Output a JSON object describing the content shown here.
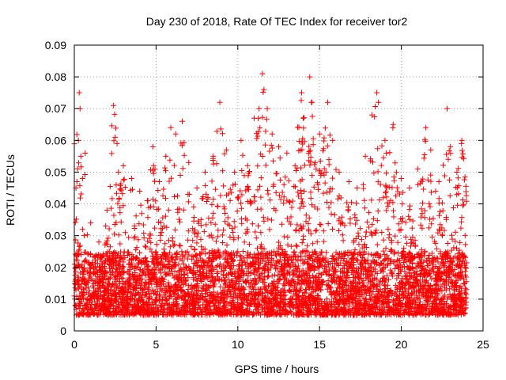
{
  "chart_data": {
    "type": "scatter",
    "title": "Day 230 of 2018, Rate Of TEC Index for receiver tor2",
    "xlabel": "GPS time / hours",
    "ylabel": "ROTI / TECUs",
    "xlim": [
      0,
      25
    ],
    "ylim": [
      0,
      0.09
    ],
    "xticks": [
      0,
      5,
      10,
      15,
      20,
      25
    ],
    "xtick_labels": [
      "0",
      "5",
      "10",
      "15",
      "20",
      "25"
    ],
    "yticks": [
      0,
      0.01,
      0.02,
      0.03,
      0.04,
      0.05,
      0.06,
      0.07,
      0.08,
      0.09
    ],
    "ytick_labels": [
      "0",
      "0.01",
      "0.02",
      "0.03",
      "0.04",
      "0.05",
      "0.06",
      "0.07",
      "0.08",
      "0.09"
    ],
    "grid": true,
    "marker": "+",
    "color": "#ff0000",
    "series": [
      {
        "values": [
          [
            0.0,
            0.011
          ],
          [
            0.1,
            0.045
          ],
          [
            0.25,
            0.06
          ],
          [
            0.3,
            0.075
          ],
          [
            0.35,
            0.07
          ],
          [
            0.4,
            0.055
          ],
          [
            0.5,
            0.048
          ],
          [
            0.6,
            0.03
          ],
          [
            1.0,
            0.034
          ],
          [
            1.5,
            0.028
          ],
          [
            2.0,
            0.038
          ],
          [
            2.4,
            0.071
          ],
          [
            2.5,
            0.061
          ],
          [
            2.7,
            0.05
          ],
          [
            3.0,
            0.052
          ],
          [
            3.5,
            0.048
          ],
          [
            4.0,
            0.044
          ],
          [
            4.5,
            0.041
          ],
          [
            4.8,
            0.058
          ],
          [
            5.2,
            0.047
          ],
          [
            5.6,
            0.055
          ],
          [
            5.9,
            0.064
          ],
          [
            6.2,
            0.062
          ],
          [
            6.6,
            0.066
          ],
          [
            7.0,
            0.053
          ],
          [
            7.5,
            0.045
          ],
          [
            8.0,
            0.05
          ],
          [
            8.5,
            0.055
          ],
          [
            8.9,
            0.072
          ],
          [
            9.3,
            0.057
          ],
          [
            9.8,
            0.05
          ],
          [
            10.2,
            0.06
          ],
          [
            10.6,
            0.052
          ],
          [
            11.0,
            0.067
          ],
          [
            11.3,
            0.07
          ],
          [
            11.5,
            0.081
          ],
          [
            11.6,
            0.076
          ],
          [
            11.8,
            0.07
          ],
          [
            12.1,
            0.062
          ],
          [
            12.5,
            0.058
          ],
          [
            13.0,
            0.056
          ],
          [
            13.5,
            0.052
          ],
          [
            13.9,
            0.075
          ],
          [
            14.0,
            0.067
          ],
          [
            14.4,
            0.08
          ],
          [
            14.5,
            0.072
          ],
          [
            15.0,
            0.062
          ],
          [
            15.5,
            0.072
          ],
          [
            15.8,
            0.06
          ],
          [
            16.2,
            0.05
          ],
          [
            16.8,
            0.047
          ],
          [
            17.3,
            0.045
          ],
          [
            17.8,
            0.055
          ],
          [
            18.2,
            0.068
          ],
          [
            18.5,
            0.075
          ],
          [
            18.6,
            0.072
          ],
          [
            19.0,
            0.06
          ],
          [
            19.5,
            0.065
          ],
          [
            20.0,
            0.048
          ],
          [
            20.5,
            0.045
          ],
          [
            21.0,
            0.051
          ],
          [
            21.5,
            0.064
          ],
          [
            21.8,
            0.057
          ],
          [
            22.3,
            0.047
          ],
          [
            22.8,
            0.07
          ],
          [
            23.0,
            0.058
          ],
          [
            23.4,
            0.05
          ],
          [
            23.7,
            0.06
          ],
          [
            23.9,
            0.03
          ]
        ]
      }
    ],
    "background_band": {
      "x_range": [
        0,
        24
      ],
      "low": 0.005,
      "high": 0.025,
      "note_points_per_hour": 0
    }
  }
}
